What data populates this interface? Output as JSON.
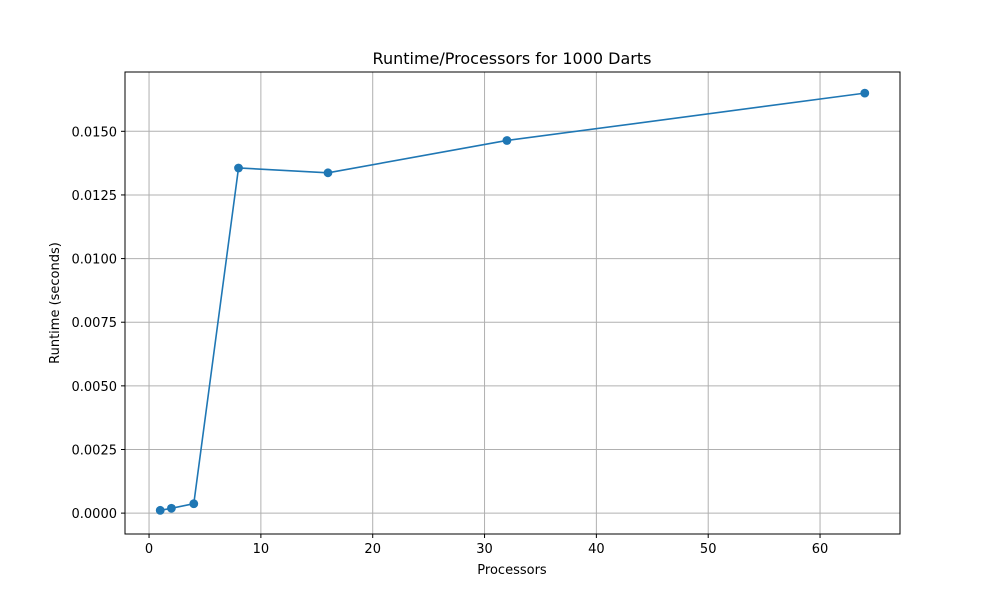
{
  "chart_data": {
    "type": "line",
    "title": "Runtime/Processors for 1000 Darts",
    "xlabel": "Processors",
    "ylabel": "Runtime (seconds)",
    "xlim": [
      -2.15,
      67.15
    ],
    "ylim": [
      -0.00082,
      0.01733
    ],
    "xticks": [
      0,
      10,
      20,
      30,
      40,
      50,
      60
    ],
    "xtick_labels": [
      "0",
      "10",
      "20",
      "30",
      "40",
      "50",
      "60"
    ],
    "yticks": [
      0.0,
      0.0025,
      0.005,
      0.0075,
      0.01,
      0.0125,
      0.015
    ],
    "ytick_labels": [
      "0.0000",
      "0.0025",
      "0.0050",
      "0.0075",
      "0.0100",
      "0.0125",
      "0.0150"
    ],
    "grid": true,
    "color": "#1f77b4",
    "series": [
      {
        "x": [
          1,
          2,
          4,
          8,
          16,
          32,
          64
        ],
        "y": [
          0.00011,
          0.00019,
          0.00037,
          0.01356,
          0.01337,
          0.01464,
          0.0165
        ]
      }
    ]
  }
}
